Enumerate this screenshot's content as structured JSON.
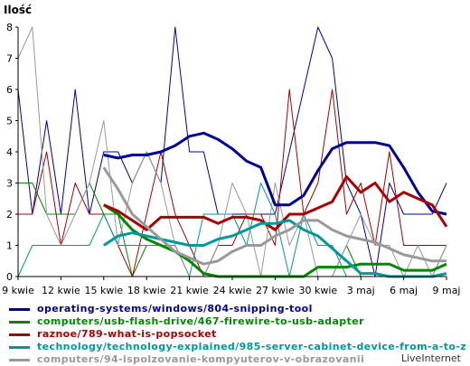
{
  "chart_data": {
    "type": "line",
    "ylabel": "Ilość",
    "ylim": [
      0,
      8
    ],
    "yticks": [
      0,
      1,
      2,
      3,
      4,
      5,
      6,
      7,
      8
    ],
    "x_tick_labels": [
      "9 kwie",
      "12 kwie",
      "15 kwie",
      "18 kwie",
      "21 kwie",
      "24 kwie",
      "27 kwie",
      "30 kwie",
      "3 maj",
      "6 maj",
      "9 maj"
    ],
    "x_count": 31,
    "series": [
      {
        "name": "operating-systems/windows/804-snipping-tool",
        "color": "#000099",
        "kind": "avg",
        "x": [
          6,
          7,
          8,
          9,
          10,
          11,
          12,
          13,
          14,
          15,
          16,
          17,
          18,
          19,
          20,
          21,
          22,
          23,
          24,
          25,
          26,
          27,
          28,
          29,
          30
        ],
        "values": [
          3.9,
          3.8,
          3.9,
          3.9,
          4.0,
          4.2,
          4.5,
          4.6,
          4.4,
          4.1,
          3.7,
          3.5,
          2.3,
          2.3,
          2.6,
          3.4,
          4.1,
          4.3,
          4.3,
          4.3,
          4.2,
          3.5,
          2.7,
          2.1,
          2.0
        ]
      },
      {
        "name": "operating-systems/windows/804-snipping-tool",
        "color": "#000099",
        "kind": "raw",
        "x": [
          0,
          1,
          2,
          3,
          4,
          5,
          6,
          7,
          8,
          9,
          10,
          11,
          12,
          13,
          14,
          15,
          16,
          17,
          18,
          19,
          20,
          21,
          22,
          23,
          24,
          25,
          26,
          27,
          28,
          29,
          30
        ],
        "values": [
          6,
          2,
          5,
          2,
          6,
          2,
          4,
          4,
          3,
          4,
          3,
          8,
          4,
          4,
          2,
          2,
          2,
          2,
          2,
          4,
          6,
          8,
          7,
          3,
          2,
          0,
          3,
          2,
          2,
          2,
          3
        ]
      },
      {
        "name": "computers/usb-flash-drive/467-firewire-to-usb-adapter",
        "color": "#008800",
        "kind": "avg",
        "x": [
          6,
          7,
          8,
          9,
          10,
          11,
          12,
          13,
          14,
          15,
          16,
          17,
          18,
          19,
          20,
          21,
          22,
          23,
          24,
          25,
          26,
          27,
          28,
          29,
          30
        ],
        "values": [
          2.3,
          2.0,
          1.5,
          1.2,
          1.0,
          0.8,
          0.5,
          0.1,
          0.0,
          0.0,
          0.0,
          0.0,
          0.0,
          0.0,
          0.0,
          0.3,
          0.3,
          0.3,
          0.4,
          0.4,
          0.4,
          0.2,
          0.2,
          0.2,
          0.4
        ]
      },
      {
        "name": "computers/usb-flash-drive/467-firewire-to-usb-adapter",
        "color": "#008800",
        "kind": "raw",
        "x": [
          0,
          1,
          2,
          3,
          4,
          5,
          6,
          7,
          8,
          9,
          10,
          11,
          12,
          13,
          14,
          15,
          16,
          17,
          18,
          19,
          20,
          21,
          22,
          23,
          24,
          25,
          26,
          27,
          28,
          29,
          30
        ],
        "values": [
          3,
          3,
          2,
          2,
          2,
          3,
          2,
          2,
          0,
          1,
          1,
          1,
          0,
          0,
          0,
          0,
          0,
          0,
          0,
          0,
          0,
          0,
          0,
          1,
          0,
          0,
          0,
          0,
          0,
          0,
          1
        ]
      },
      {
        "name": "raznoe/789-what-is-popsocket",
        "color": "#aa0000",
        "kind": "avg",
        "x": [
          6,
          7,
          8,
          9,
          10,
          11,
          12,
          13,
          14,
          15,
          16,
          17,
          18,
          19,
          20,
          21,
          22,
          23,
          24,
          25,
          26,
          27,
          28,
          29,
          30
        ],
        "values": [
          2.3,
          2.1,
          1.8,
          1.5,
          1.9,
          1.9,
          1.9,
          1.9,
          1.7,
          1.9,
          1.9,
          1.8,
          1.5,
          2.0,
          2.0,
          2.2,
          2.4,
          3.2,
          2.7,
          3.0,
          2.4,
          2.7,
          2.5,
          2.3,
          1.6
        ]
      },
      {
        "name": "raznoe/789-what-is-popsocket",
        "color": "#aa0000",
        "kind": "raw",
        "x": [
          0,
          1,
          2,
          3,
          4,
          5,
          6,
          7,
          8,
          9,
          10,
          11,
          12,
          13,
          14,
          15,
          16,
          17,
          18,
          19,
          20,
          21,
          22,
          23,
          24,
          25,
          26,
          27,
          28,
          29,
          30
        ],
        "values": [
          2,
          2,
          4,
          1,
          3,
          2,
          2,
          1,
          0,
          2,
          4,
          2,
          1,
          0,
          1,
          1,
          2,
          2,
          1,
          6,
          2,
          3,
          6,
          2,
          3,
          1,
          4,
          1,
          1,
          1,
          1
        ]
      },
      {
        "name": "technology/technology-explained/985-server-cabinet-device-from-a-to-z",
        "color": "#009999",
        "kind": "avg",
        "x": [
          6,
          7,
          8,
          9,
          10,
          11,
          12,
          13,
          14,
          15,
          16,
          17,
          18,
          19,
          20,
          21,
          22,
          23,
          24,
          25,
          26,
          27,
          28,
          29,
          30
        ],
        "values": [
          1.0,
          1.3,
          1.4,
          1.3,
          1.2,
          1.1,
          1.0,
          1.0,
          1.2,
          1.3,
          1.5,
          1.7,
          1.7,
          1.8,
          1.5,
          1.3,
          0.9,
          0.5,
          0.1,
          0.1,
          0.0,
          0.0,
          0.0,
          0.0,
          0.1
        ]
      },
      {
        "name": "technology/technology-explained/985-server-cabinet-device-from-a-to-z",
        "color": "#009999",
        "kind": "raw",
        "x": [
          0,
          1,
          2,
          3,
          4,
          5,
          6,
          7,
          8,
          9,
          10,
          11,
          12,
          13,
          14,
          15,
          16,
          17,
          18,
          19,
          20,
          21,
          22,
          23,
          24,
          25,
          26,
          27,
          28,
          29,
          30
        ],
        "values": [
          0,
          1,
          1,
          1,
          1,
          1,
          2,
          1,
          1,
          1,
          1,
          1,
          0,
          2,
          2,
          2,
          1,
          3,
          2,
          0,
          2,
          1,
          1,
          0,
          0,
          0,
          0,
          0,
          0,
          0,
          0
        ]
      },
      {
        "name": "computers/94-ispolzovanie-kompyuterov-v-obrazovanii",
        "color": "#999999",
        "kind": "avg",
        "x": [
          6,
          7,
          8,
          9,
          10,
          11,
          12,
          13,
          14,
          15,
          16,
          17,
          18,
          19,
          20,
          21,
          22,
          23,
          24,
          25,
          26,
          27,
          28,
          29,
          30
        ],
        "values": [
          3.5,
          2.8,
          2.0,
          1.6,
          1.2,
          0.8,
          0.6,
          0.4,
          0.5,
          0.8,
          1.0,
          1.0,
          1.3,
          1.5,
          1.8,
          1.8,
          1.5,
          1.3,
          1.2,
          1.1,
          0.9,
          0.7,
          0.6,
          0.5,
          0.5
        ]
      },
      {
        "name": "computers/94-ispolzovanie-kompyuterov-v-obrazovanii",
        "color": "#999999",
        "kind": "raw",
        "x": [
          0,
          1,
          2,
          3,
          4,
          5,
          6,
          7,
          8,
          9,
          10,
          11,
          12,
          13,
          14,
          15,
          16,
          17,
          18,
          19,
          20,
          21,
          22,
          23,
          24,
          25,
          26,
          27,
          28,
          29,
          30
        ],
        "values": [
          7,
          8,
          2,
          1,
          2,
          3,
          5,
          1,
          3,
          4,
          3,
          1,
          0,
          0,
          1,
          3,
          2,
          0,
          3,
          1,
          2,
          0,
          0,
          1,
          2,
          1,
          1,
          0,
          1,
          0,
          1
        ]
      }
    ],
    "grid": false,
    "legend_position": "bottom-left",
    "credit": "LiveInternet"
  }
}
